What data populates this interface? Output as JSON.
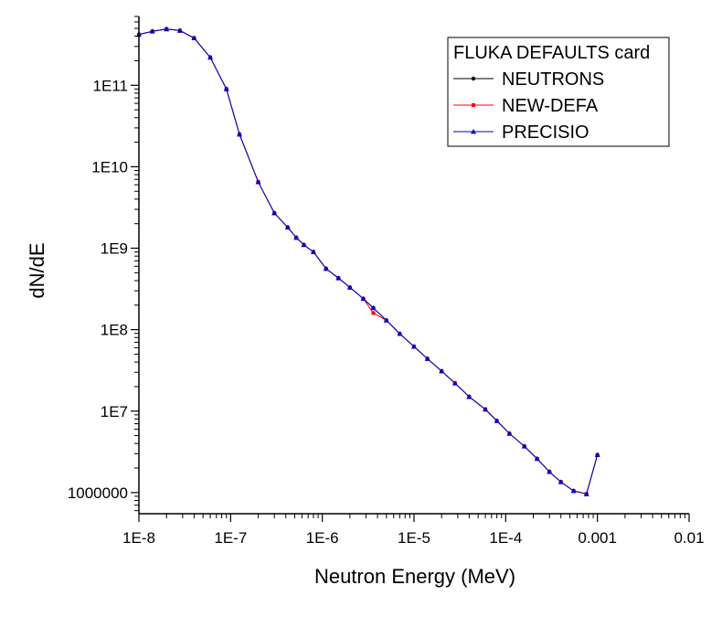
{
  "chart_data": {
    "type": "line",
    "title": "",
    "xlabel": "Neutron Energy (MeV)",
    "ylabel": "dN/dE",
    "x_scale": "log",
    "y_scale": "log",
    "xlim": [
      1e-08,
      0.01
    ],
    "ylim": [
      550000,
      700000000000
    ],
    "x_ticks": [
      1e-08,
      1e-07,
      1e-06,
      1e-05,
      0.0001,
      0.001,
      0.01
    ],
    "x_tick_labels": [
      "1E-8",
      "1E-7",
      "1E-6",
      "1E-5",
      "1E-4",
      "0.001",
      "0.01"
    ],
    "y_ticks": [
      1000000,
      10000000,
      100000000,
      1000000000,
      10000000000,
      100000000000
    ],
    "y_tick_labels": [
      "1000000",
      "1E7",
      "1E8",
      "1E9",
      "1E10",
      "1E11"
    ],
    "grid": false,
    "legend": {
      "title": "FLUKA DEFAULTS card",
      "position": "top-right"
    },
    "series": [
      {
        "name": "NEUTRONS",
        "color": "#000000",
        "marker": "circle",
        "x": [
          1e-08,
          1.4e-08,
          2e-08,
          2.8e-08,
          4e-08,
          6e-08,
          9e-08,
          1.25e-07,
          2e-07,
          3e-07,
          4.2e-07,
          5.2e-07,
          6.3e-07,
          8e-07,
          1.1e-06,
          1.5e-06,
          2e-06,
          2.8e-06,
          3.6e-06,
          5e-06,
          7e-06,
          1e-05,
          1.4e-05,
          2e-05,
          2.8e-05,
          4e-05,
          6e-05,
          8e-05,
          0.00011,
          0.00016,
          0.00022,
          0.0003,
          0.0004,
          0.00055,
          0.00076,
          0.001
        ],
        "y": [
          420000000000.0,
          460000000000.0,
          490000000000.0,
          470000000000.0,
          380000000000.0,
          220000000000.0,
          90000000000.0,
          25000000000.0,
          6500000000.0,
          2700000000.0,
          1800000000.0,
          1350000000.0,
          1100000000.0,
          900000000.0,
          560000000.0,
          430000000.0,
          330000000.0,
          240000000.0,
          185000000.0,
          130000000.0,
          89000000.0,
          62000000.0,
          44000000.0,
          31000000.0,
          22000000.0,
          15000000.0,
          10500000.0,
          7600000.0,
          5300000.0,
          3700000.0,
          2600000.0,
          1800000.0,
          1350000.0,
          1050000.0,
          960000.0,
          2900000.0
        ]
      },
      {
        "name": "NEW-DEFA",
        "color": "#ff0000",
        "marker": "square",
        "x": [
          1e-08,
          1.4e-08,
          2e-08,
          2.8e-08,
          4e-08,
          6e-08,
          9e-08,
          1.25e-07,
          2e-07,
          3e-07,
          4.2e-07,
          5.2e-07,
          6.3e-07,
          8e-07,
          1.1e-06,
          1.5e-06,
          2e-06,
          2.8e-06,
          3.6e-06,
          5e-06,
          7e-06,
          1e-05,
          1.4e-05,
          2e-05,
          2.8e-05,
          4e-05,
          6e-05,
          8e-05,
          0.00011,
          0.00016,
          0.00022,
          0.0003,
          0.0004,
          0.00055,
          0.00076,
          0.001
        ],
        "y": [
          420000000000.0,
          460000000000.0,
          490000000000.0,
          470000000000.0,
          380000000000.0,
          220000000000.0,
          90000000000.0,
          25000000000.0,
          6500000000.0,
          2700000000.0,
          1800000000.0,
          1350000000.0,
          1100000000.0,
          900000000.0,
          560000000.0,
          430000000.0,
          330000000.0,
          240000000.0,
          160000000.0,
          130000000.0,
          89000000.0,
          62000000.0,
          44000000.0,
          31000000.0,
          22000000.0,
          15000000.0,
          10500000.0,
          7600000.0,
          5300000.0,
          3700000.0,
          2600000.0,
          1800000.0,
          1350000.0,
          1050000.0,
          960000.0,
          2900000.0
        ]
      },
      {
        "name": "PRECISIO",
        "color": "#0000cc",
        "marker": "triangle",
        "x": [
          1e-08,
          1.4e-08,
          2e-08,
          2.8e-08,
          4e-08,
          6e-08,
          9e-08,
          1.25e-07,
          2e-07,
          3e-07,
          4.2e-07,
          5.2e-07,
          6.3e-07,
          8e-07,
          1.1e-06,
          1.5e-06,
          2e-06,
          2.8e-06,
          3.6e-06,
          5e-06,
          7e-06,
          1e-05,
          1.4e-05,
          2e-05,
          2.8e-05,
          4e-05,
          6e-05,
          8e-05,
          0.00011,
          0.00016,
          0.00022,
          0.0003,
          0.0004,
          0.00055,
          0.00076,
          0.001
        ],
        "y": [
          420000000000.0,
          460000000000.0,
          490000000000.0,
          470000000000.0,
          380000000000.0,
          220000000000.0,
          90000000000.0,
          25000000000.0,
          6500000000.0,
          2700000000.0,
          1800000000.0,
          1350000000.0,
          1100000000.0,
          900000000.0,
          560000000.0,
          430000000.0,
          330000000.0,
          240000000.0,
          185000000.0,
          130000000.0,
          89000000.0,
          62000000.0,
          44000000.0,
          31000000.0,
          22000000.0,
          15000000.0,
          10500000.0,
          7600000.0,
          5300000.0,
          3700000.0,
          2600000.0,
          1800000.0,
          1350000.0,
          1050000.0,
          960000.0,
          2900000.0
        ]
      }
    ]
  }
}
